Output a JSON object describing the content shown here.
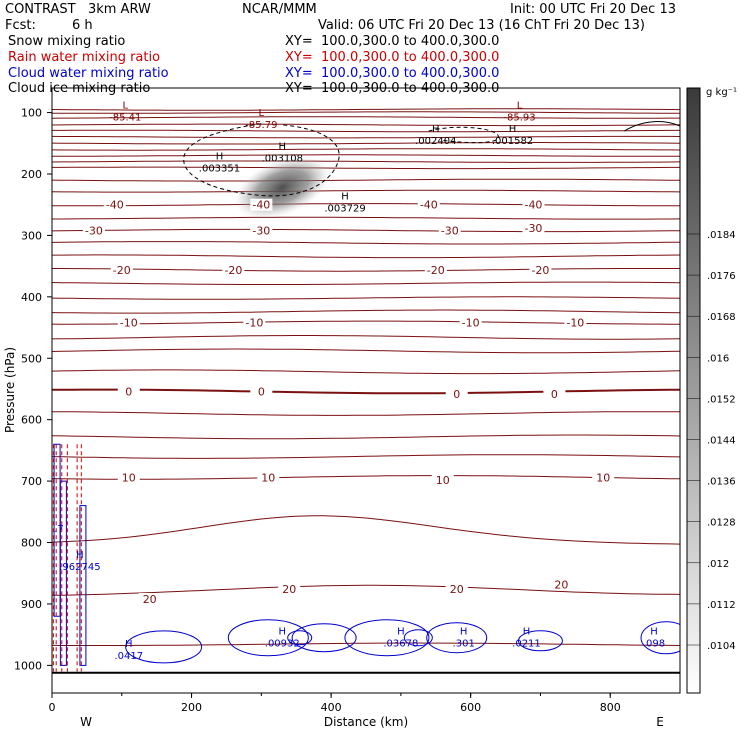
{
  "header": {
    "model": "CONTRAST   3km ARW",
    "center": "NCAR/MMM",
    "init": "Init: 00 UTC Fri 20 Dec 13",
    "fcst_label": "Fcst:",
    "fcst_value": "6 h",
    "valid": "Valid: 06 UTC Fri 20 Dec 13 (16 ChT Fri 20 Dec 13)",
    "fields": [
      {
        "name": "Snow mixing ratio",
        "xy": "XY=  100.0,300.0 to 400.0,300.0",
        "color": "#000000"
      },
      {
        "name": "Rain water mixing ratio",
        "xy": "XY=  100.0,300.0 to 400.0,300.0",
        "color": "#cc0000"
      },
      {
        "name": "Cloud water mixing ratio",
        "xy": "XY=  100.0,300.0 to 400.0,300.0",
        "color": "#0000cc"
      },
      {
        "name": "Cloud ice mixing ratio",
        "xy": "XY=  100.0,300.0 to 400.0,300.0",
        "color": "#000000"
      }
    ]
  },
  "chart_data": {
    "type": "contour",
    "xlabel": "Distance (km)",
    "ylabel": "Pressure (hPa)",
    "xlim": [
      0,
      900
    ],
    "ylim": [
      1045,
      60
    ],
    "xticks": [
      0,
      200,
      400,
      600,
      800
    ],
    "yticks": [
      100,
      200,
      300,
      400,
      500,
      600,
      700,
      800,
      900,
      1000
    ],
    "west_label": "W",
    "east_label": "E",
    "colorbar": {
      "unit": "g kg⁻¹",
      "ticks": [
        ".0104",
        ".0112",
        ".012",
        ".0128",
        ".0136",
        ".0144",
        ".0152",
        ".016",
        ".0168",
        ".0176",
        ".0184"
      ]
    },
    "temperature_labels": [
      {
        "text": "-40",
        "x": 90,
        "p": 250
      },
      {
        "text": "-40",
        "x": 300,
        "p": 250
      },
      {
        "text": "-40",
        "x": 540,
        "p": 250
      },
      {
        "text": "-40",
        "x": 690,
        "p": 250
      },
      {
        "text": "-30",
        "x": 60,
        "p": 292
      },
      {
        "text": "-30",
        "x": 300,
        "p": 292
      },
      {
        "text": "-30",
        "x": 570,
        "p": 292
      },
      {
        "text": "-30",
        "x": 690,
        "p": 288
      },
      {
        "text": "-20",
        "x": 100,
        "p": 356
      },
      {
        "text": "-20",
        "x": 260,
        "p": 356
      },
      {
        "text": "-20",
        "x": 550,
        "p": 356
      },
      {
        "text": "-20",
        "x": 700,
        "p": 356
      },
      {
        "text": "-10",
        "x": 110,
        "p": 442
      },
      {
        "text": "-10",
        "x": 290,
        "p": 442
      },
      {
        "text": "-10",
        "x": 600,
        "p": 442
      },
      {
        "text": "-10",
        "x": 750,
        "p": 442
      },
      {
        "text": "0",
        "x": 110,
        "p": 554
      },
      {
        "text": "0",
        "x": 300,
        "p": 554
      },
      {
        "text": "0",
        "x": 580,
        "p": 558
      },
      {
        "text": "0",
        "x": 720,
        "p": 558
      },
      {
        "text": "10",
        "x": 110,
        "p": 694
      },
      {
        "text": "10",
        "x": 310,
        "p": 694
      },
      {
        "text": "10",
        "x": 560,
        "p": 698
      },
      {
        "text": "10",
        "x": 790,
        "p": 694
      },
      {
        "text": "20",
        "x": 140,
        "p": 892
      },
      {
        "text": "20",
        "x": 340,
        "p": 876
      },
      {
        "text": "20",
        "x": 580,
        "p": 876
      },
      {
        "text": "20",
        "x": 730,
        "p": 868
      }
    ],
    "extrema_labels": [
      {
        "mark": "L",
        "value": "-85.41",
        "x": 105,
        "p": 100,
        "color": "#800000"
      },
      {
        "mark": "L",
        "value": "-85.79",
        "x": 300,
        "p": 112,
        "color": "#800000"
      },
      {
        "mark": "L",
        "value": "-85.93",
        "x": 670,
        "p": 100,
        "color": "#800000"
      },
      {
        "mark": "H",
        "value": ".003351",
        "x": 240,
        "p": 183,
        "color": "#000000"
      },
      {
        "mark": "H",
        "value": ".003108",
        "x": 330,
        "p": 167,
        "color": "#000000"
      },
      {
        "mark": "H",
        "value": ".003729",
        "x": 420,
        "p": 248,
        "color": "#000000"
      },
      {
        "mark": "H",
        "value": ".002404",
        "x": 550,
        "p": 138,
        "color": "#000000"
      },
      {
        "mark": "H",
        "value": ".001582",
        "x": 660,
        "p": 138,
        "color": "#000000"
      },
      {
        "mark": "H",
        "value": ".0417",
        "x": 110,
        "p": 977,
        "color": "#0000cc"
      },
      {
        "mark": "H",
        "value": ".00932",
        "x": 330,
        "p": 956,
        "color": "#0000cc"
      },
      {
        "mark": "H",
        "value": ".03678",
        "x": 500,
        "p": 956,
        "color": "#0000cc"
      },
      {
        "mark": "H",
        "value": ".301",
        "x": 590,
        "p": 956,
        "color": "#0000cc"
      },
      {
        "mark": "H",
        "value": ".0211",
        "x": 680,
        "p": 956,
        "color": "#0000cc"
      },
      {
        "mark": "H",
        "value": ".098",
        "x": 895,
        "p": 956,
        "color": "#0000cc"
      },
      {
        "mark": "",
        "value": ".7",
        "x": 10,
        "p": 770,
        "color": "#0000cc"
      },
      {
        "mark": "H",
        "value": ".962745",
        "x": 40,
        "p": 832,
        "color": "#0000cc"
      }
    ]
  }
}
